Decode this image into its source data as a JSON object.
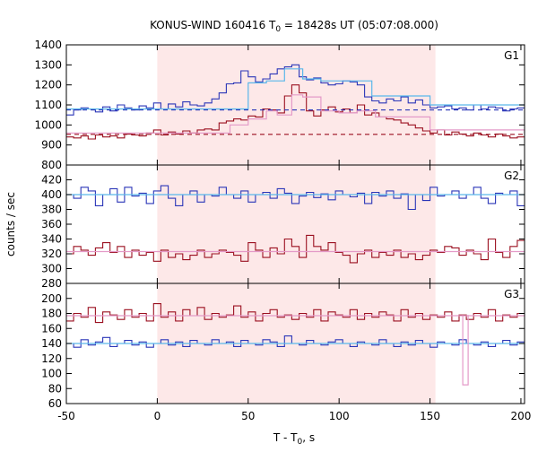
{
  "chart_data": {
    "type": "line",
    "title": {
      "main": "KONUS-WIND 160416 T",
      "sub": "0",
      "rest": " = 18428s UT (05:07:08.000)"
    },
    "xlabel": {
      "main": "T - T",
      "sub": "0",
      "rest": ", s"
    },
    "ylabel": "counts / sec",
    "xlim": [
      -50,
      202
    ],
    "xticks": [
      -50,
      0,
      50,
      100,
      150,
      200
    ],
    "grid": false,
    "highlight_interval": [
      0,
      153
    ],
    "colors": {
      "highlight": "#fde8e8",
      "blue": "#2b36b8",
      "red": "#9b1020",
      "blue_fit": "#5ab7ea",
      "red_fit": "#e49ac8"
    },
    "panels": [
      {
        "name": "G1",
        "ylim": [
          800,
          1400
        ],
        "yticks": [
          800,
          900,
          1000,
          1100,
          1200,
          1300,
          1400
        ],
        "series": [
          {
            "color": "blue",
            "x": [
              -50,
              -46,
              -42,
              -38,
              -34,
              -30,
              -26,
              -22,
              -18,
              -14,
              -10,
              -6,
              -2,
              2,
              6,
              10,
              14,
              18,
              22,
              26,
              30,
              34,
              38,
              42,
              46,
              50,
              54,
              58,
              62,
              66,
              70,
              74,
              78,
              82,
              86,
              90,
              94,
              98,
              102,
              106,
              110,
              114,
              118,
              122,
              126,
              130,
              134,
              138,
              142,
              146,
              150,
              154,
              158,
              162,
              166,
              170,
              174,
              178,
              182,
              186,
              190,
              194,
              198
            ],
            "values": [
              1050,
              1075,
              1085,
              1080,
              1065,
              1090,
              1070,
              1100,
              1085,
              1075,
              1095,
              1085,
              1110,
              1080,
              1105,
              1090,
              1115,
              1100,
              1095,
              1110,
              1130,
              1160,
              1205,
              1210,
              1270,
              1240,
              1215,
              1230,
              1255,
              1280,
              1290,
              1300,
              1240,
              1225,
              1235,
              1210,
              1200,
              1205,
              1220,
              1215,
              1200,
              1140,
              1120,
              1110,
              1130,
              1120,
              1140,
              1110,
              1125,
              1100,
              1085,
              1090,
              1095,
              1080,
              1085,
              1075,
              1100,
              1080,
              1090,
              1085,
              1070,
              1080,
              1085
            ]
          },
          {
            "color": "red",
            "x": [
              -50,
              -46,
              -42,
              -38,
              -34,
              -30,
              -26,
              -22,
              -18,
              -14,
              -10,
              -6,
              -2,
              2,
              6,
              10,
              14,
              18,
              22,
              26,
              30,
              34,
              38,
              42,
              46,
              50,
              54,
              58,
              62,
              66,
              70,
              74,
              78,
              82,
              86,
              90,
              94,
              98,
              102,
              106,
              110,
              114,
              118,
              122,
              126,
              130,
              134,
              138,
              142,
              146,
              150,
              154,
              158,
              162,
              166,
              170,
              174,
              178,
              182,
              186,
              190,
              194,
              198
            ],
            "values": [
              940,
              935,
              945,
              930,
              950,
              940,
              945,
              935,
              955,
              950,
              945,
              960,
              975,
              950,
              965,
              955,
              970,
              960,
              975,
              980,
              975,
              1010,
              1020,
              1030,
              1025,
              1045,
              1040,
              1080,
              1075,
              1060,
              1145,
              1200,
              1160,
              1070,
              1045,
              1075,
              1090,
              1065,
              1080,
              1060,
              1100,
              1050,
              1060,
              1040,
              1030,
              1025,
              1010,
              1000,
              985,
              970,
              960,
              975,
              950,
              965,
              955,
              945,
              960,
              950,
              940,
              955,
              945,
              935,
              940
            ]
          },
          {
            "color": "blue_fit",
            "x": [
              -50,
              40,
              50,
              60,
              70,
              80,
              90,
              110,
              118,
              150,
              202
            ],
            "values": [
              1080,
              1080,
              1210,
              1220,
              1280,
              1230,
              1220,
              1220,
              1145,
              1100,
              1100
            ]
          },
          {
            "color": "red_fit",
            "x": [
              -50,
              30,
              40,
              50,
              60,
              66,
              74,
              80,
              90,
              100,
              110,
              120,
              150,
              202
            ],
            "values": [
              960,
              960,
              1000,
              1030,
              1070,
              1050,
              1150,
              1140,
              1070,
              1060,
              1070,
              1040,
              975,
              950
            ]
          },
          {
            "color": "blue",
            "dashed": true,
            "x": [
              -50,
              202
            ],
            "values": [
              1075,
              1075
            ]
          },
          {
            "color": "red",
            "dashed": true,
            "x": [
              -50,
              202
            ],
            "values": [
              953,
              953
            ]
          }
        ]
      },
      {
        "name": "G2",
        "ylim": [
          280,
          440
        ],
        "yticks": [
          280,
          300,
          320,
          340,
          360,
          380,
          400,
          420
        ],
        "series": [
          {
            "color": "blue",
            "x": [
              -50,
              -46,
              -42,
              -38,
              -34,
              -30,
              -26,
              -22,
              -18,
              -14,
              -10,
              -6,
              -2,
              2,
              6,
              10,
              14,
              18,
              22,
              26,
              30,
              34,
              38,
              42,
              46,
              50,
              54,
              58,
              62,
              66,
              70,
              74,
              78,
              82,
              86,
              90,
              94,
              98,
              102,
              106,
              110,
              114,
              118,
              122,
              126,
              130,
              134,
              138,
              142,
              146,
              150,
              154,
              158,
              162,
              166,
              170,
              174,
              178,
              182,
              186,
              190,
              194,
              198
            ],
            "values": [
              400,
              395,
              410,
              405,
              385,
              400,
              408,
              390,
              410,
              398,
              402,
              388,
              405,
              412,
              395,
              385,
              400,
              405,
              390,
              400,
              398,
              410,
              400,
              395,
              405,
              390,
              400,
              403,
              395,
              408,
              402,
              388,
              398,
              403,
              396,
              401,
              393,
              405,
              400,
              397,
              402,
              388,
              403,
              398,
              405,
              395,
              401,
              380,
              400,
              392,
              410,
              398,
              400,
              405,
              395,
              400,
              410,
              395,
              388,
              402,
              400,
              405,
              385
            ]
          },
          {
            "color": "red",
            "x": [
              -50,
              -46,
              -42,
              -38,
              -34,
              -30,
              -26,
              -22,
              -18,
              -14,
              -10,
              -6,
              -2,
              2,
              6,
              10,
              14,
              18,
              22,
              26,
              30,
              34,
              38,
              42,
              46,
              50,
              54,
              58,
              62,
              66,
              70,
              74,
              78,
              82,
              86,
              90,
              94,
              98,
              102,
              106,
              110,
              114,
              118,
              122,
              126,
              130,
              134,
              138,
              142,
              146,
              150,
              154,
              158,
              162,
              166,
              170,
              174,
              178,
              182,
              186,
              190,
              194,
              198
            ],
            "values": [
              320,
              330,
              325,
              318,
              328,
              335,
              322,
              330,
              315,
              325,
              318,
              322,
              310,
              325,
              315,
              320,
              312,
              318,
              325,
              315,
              320,
              325,
              322,
              318,
              310,
              335,
              325,
              315,
              328,
              320,
              340,
              330,
              315,
              345,
              330,
              325,
              335,
              322,
              318,
              308,
              320,
              325,
              315,
              322,
              318,
              325,
              315,
              320,
              312,
              318,
              325,
              322,
              330,
              328,
              318,
              325,
              320,
              312,
              340,
              322,
              315,
              330,
              338
            ]
          },
          {
            "color": "blue_fit",
            "x": [
              -50,
              202
            ],
            "values": [
              400,
              400
            ]
          },
          {
            "color": "red_fit",
            "x": [
              -50,
              202
            ],
            "values": [
              323,
              323
            ]
          }
        ]
      },
      {
        "name": "G3",
        "ylim": [
          60,
          220
        ],
        "yticks": [
          60,
          80,
          100,
          120,
          140,
          160,
          180,
          200
        ],
        "series": [
          {
            "color": "red",
            "x": [
              -50,
              -46,
              -42,
              -38,
              -34,
              -30,
              -26,
              -22,
              -18,
              -14,
              -10,
              -6,
              -2,
              2,
              6,
              10,
              14,
              18,
              22,
              26,
              30,
              34,
              38,
              42,
              46,
              50,
              54,
              58,
              62,
              66,
              70,
              74,
              78,
              82,
              86,
              90,
              94,
              98,
              102,
              106,
              110,
              114,
              118,
              122,
              126,
              130,
              134,
              138,
              142,
              146,
              150,
              154,
              158,
              162,
              166,
              170,
              174,
              178,
              182,
              186,
              190,
              194,
              198
            ],
            "values": [
              170,
              180,
              175,
              188,
              168,
              182,
              178,
              172,
              185,
              175,
              180,
              170,
              193,
              175,
              182,
              170,
              185,
              177,
              188,
              172,
              180,
              175,
              178,
              190,
              175,
              182,
              170,
              180,
              185,
              175,
              178,
              172,
              180,
              175,
              185,
              170,
              182,
              178,
              175,
              185,
              172,
              180,
              175,
              182,
              178,
              170,
              185,
              175,
              180,
              172,
              178,
              175,
              182,
              170,
              178,
              172,
              180,
              175,
              185,
              170,
              178,
              175,
              180
            ]
          },
          {
            "color": "blue",
            "x": [
              -50,
              -46,
              -42,
              -38,
              -34,
              -30,
              -26,
              -22,
              -18,
              -14,
              -10,
              -6,
              -2,
              2,
              6,
              10,
              14,
              18,
              22,
              26,
              30,
              34,
              38,
              42,
              46,
              50,
              54,
              58,
              62,
              66,
              70,
              74,
              78,
              82,
              86,
              90,
              94,
              98,
              102,
              106,
              110,
              114,
              118,
              122,
              126,
              130,
              134,
              138,
              142,
              146,
              150,
              154,
              158,
              162,
              166,
              170,
              174,
              178,
              182,
              186,
              190,
              194,
              198
            ],
            "values": [
              140,
              135,
              145,
              138,
              142,
              148,
              136,
              140,
              144,
              138,
              142,
              135,
              140,
              145,
              138,
              142,
              136,
              144,
              140,
              138,
              145,
              140,
              142,
              136,
              144,
              140,
              138,
              145,
              142,
              136,
              150,
              140,
              138,
              144,
              140,
              138,
              142,
              145,
              140,
              136,
              142,
              140,
              138,
              145,
              140,
              136,
              142,
              138,
              144,
              140,
              135,
              142,
              140,
              138,
              145,
              140,
              138,
              142,
              136,
              140,
              144,
              138,
              142
            ]
          },
          {
            "color": "red_fit",
            "x": [
              -50,
              202
            ],
            "values": [
              177,
              177
            ]
          },
          {
            "color": "blue_fit",
            "x": [
              -50,
              202
            ],
            "values": [
              140,
              140
            ]
          },
          {
            "color": "red_fit",
            "x": [
              168,
              168,
              171,
              171
            ],
            "values": [
              178,
              85,
              85,
              178
            ]
          }
        ]
      }
    ]
  }
}
